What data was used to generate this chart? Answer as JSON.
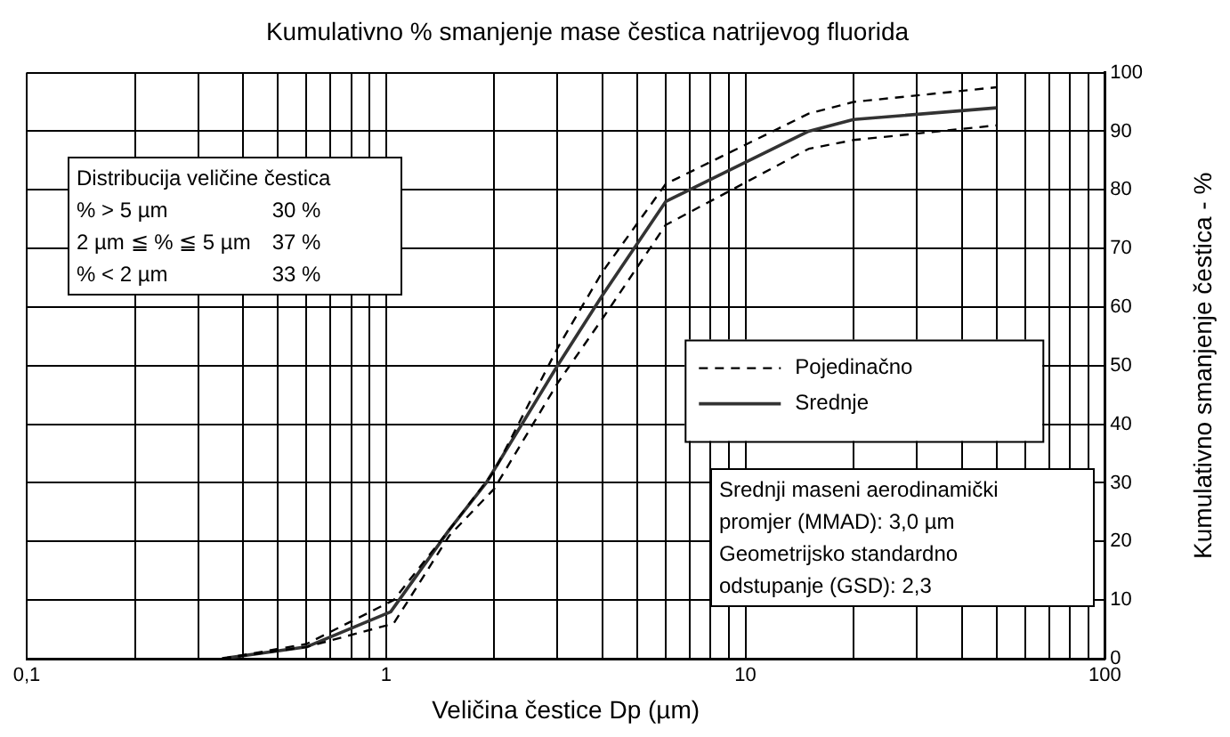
{
  "chart_data": {
    "type": "line",
    "title": "Kumulativno % smanjenje mase čestica natrijevog fluorida",
    "xlabel": "Veličina čestice Dp (µm)",
    "ylabel": "Kumulativno smanjenje čestica - %",
    "log": "x",
    "grid": true,
    "legend": "right",
    "marker": "none",
    "xlim": [
      0.1,
      100
    ],
    "xticks": [
      {
        "value": 0.1,
        "label": "0,1"
      },
      {
        "value": 0.2,
        "label": null
      },
      {
        "value": 0.3,
        "label": null
      },
      {
        "value": 0.4,
        "label": null
      },
      {
        "value": 0.5,
        "label": null
      },
      {
        "value": 0.6,
        "label": null
      },
      {
        "value": 0.7,
        "label": null
      },
      {
        "value": 0.8,
        "label": null
      },
      {
        "value": 0.9,
        "label": null
      },
      1,
      {
        "value": 2,
        "label": null
      },
      {
        "value": 3,
        "label": null
      },
      {
        "value": 4,
        "label": null
      },
      {
        "value": 5,
        "label": null
      },
      {
        "value": 6,
        "label": null
      },
      {
        "value": 7,
        "label": null
      },
      {
        "value": 8,
        "label": null
      },
      {
        "value": 9,
        "label": null
      },
      10,
      {
        "value": 20,
        "label": null
      },
      {
        "value": 30,
        "label": null
      },
      {
        "value": 40,
        "label": null
      },
      {
        "value": 50,
        "label": null
      },
      {
        "value": 60,
        "label": null
      },
      {
        "value": 70,
        "label": null
      },
      {
        "value": 80,
        "label": null
      },
      {
        "value": 90,
        "label": null
      },
      100
    ],
    "ylim": [
      0,
      100
    ],
    "yticks": [
      0,
      10,
      20,
      30,
      40,
      50,
      60,
      70,
      80,
      90,
      100
    ],
    "series": [
      {
        "name": "Pojedinačno",
        "color": "#000000",
        "line_style": "dashed",
        "x": [
          0.35,
          0.6,
          1.05,
          1.5,
          2,
          3,
          4,
          6,
          15,
          20,
          50
        ],
        "values": [
          0,
          2.5,
          10,
          22,
          32,
          53,
          66,
          81,
          93,
          95,
          97.5
        ]
      },
      {
        "color": "#000000",
        "line_style": "dashed",
        "x": [
          0.35,
          0.6,
          1.05,
          1.5,
          2,
          3,
          4,
          6,
          15,
          20,
          50
        ],
        "values": [
          0,
          2,
          6,
          21,
          29,
          47,
          58,
          74,
          87,
          88.5,
          91
        ]
      },
      {
        "name": "Srednje",
        "color": "#333333",
        "line_style": "solid",
        "x": [
          0.35,
          0.6,
          1.03,
          1.5,
          1.9,
          3,
          4,
          6,
          15,
          20,
          50
        ],
        "values": [
          0,
          2,
          8,
          22,
          30,
          50,
          62,
          78,
          90,
          92,
          94
        ]
      }
    ],
    "annotations": [
      "Distribucija veličine čestica",
      "% > 5 µm",
      "30 %",
      "2 µm ≦ % ≦ 5 µm",
      "37 %",
      "% < 2 µm",
      "33 %",
      "Srednji maseni aerodinamički promjer (MMAD): 3,0 µm",
      "Geometrijsko standardno odstupanje (GSD): 2,3"
    ]
  }
}
